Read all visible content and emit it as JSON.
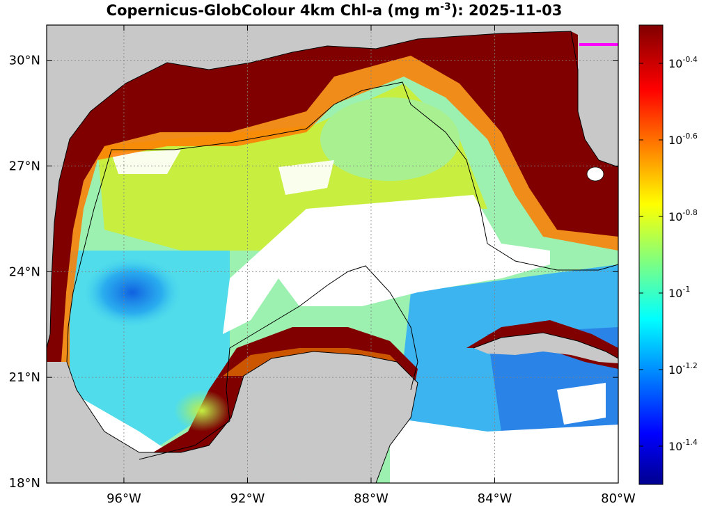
{
  "title": {
    "prefix": "Copernicus-GlobColour 4km Chl-a (mg m",
    "exponent": "-3",
    "suffix": "): 2025-11-03"
  },
  "map": {
    "lon_range": [
      -98.5,
      -80
    ],
    "lat_range": [
      18,
      31
    ],
    "x_ticks": [
      {
        "value": -96,
        "label": "96°W"
      },
      {
        "value": -92,
        "label": "92°W"
      },
      {
        "value": -88,
        "label": "88°W"
      },
      {
        "value": -84,
        "label": "84°W"
      },
      {
        "value": -80,
        "label": "80°W"
      }
    ],
    "y_ticks": [
      {
        "value": 30,
        "label": "30°N"
      },
      {
        "value": 27,
        "label": "27°N"
      },
      {
        "value": 24,
        "label": "24°N"
      },
      {
        "value": 21,
        "label": "21°N"
      },
      {
        "value": 18,
        "label": "18°N"
      }
    ],
    "grid": "dotted",
    "colors": {
      "land": "#c8c8c8",
      "no_data": "#ffffff",
      "high_chl": "#800000",
      "marker": "#ff00ff"
    }
  },
  "colorbar": {
    "colormap": "jet",
    "scale": "log10",
    "range": [
      -1.5,
      -0.3
    ],
    "ticks": [
      {
        "base": "10",
        "exp": "-0.4"
      },
      {
        "base": "10",
        "exp": "-0.6"
      },
      {
        "base": "10",
        "exp": "-0.8"
      },
      {
        "base": "10",
        "exp": "-1"
      },
      {
        "base": "10",
        "exp": "-1.2"
      },
      {
        "base": "10",
        "exp": "-1.4"
      }
    ],
    "tick_values": [
      -0.4,
      -0.6,
      -0.8,
      -1,
      -1.2,
      -1.4
    ]
  }
}
